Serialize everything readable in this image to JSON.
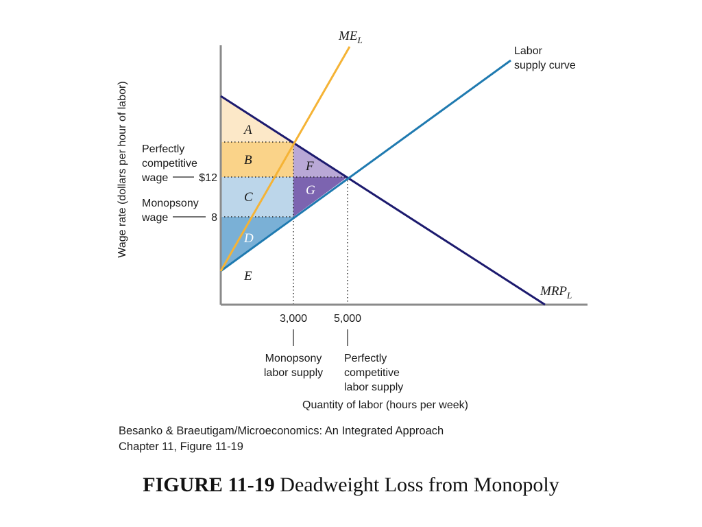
{
  "figure": {
    "y_axis_label": "Wage rate (dollars per hour of labor)",
    "x_axis_label": "Quantity of labor (hours per week)",
    "curves": {
      "me_l": {
        "main": "ME",
        "sub": "L",
        "color": "#f5b335"
      },
      "labor_supply": {
        "line1": "Labor",
        "line2": "supply curve",
        "color": "#1f7ab0"
      },
      "mrp_l": {
        "main": "MRP",
        "sub": "L",
        "color": "#1c1a6e"
      }
    },
    "wage_labels": {
      "competitive": {
        "line1": "Perfectly",
        "line2": "competitive",
        "line3": "wage",
        "value": "$12"
      },
      "monopsony": {
        "line1": "Monopsony",
        "line2": "wage",
        "value": "8"
      }
    },
    "quantity_labels": {
      "monopsony": {
        "value": "3,000",
        "line1": "Monopsony",
        "line2": "labor supply"
      },
      "competitive": {
        "value": "5,000",
        "line1": "Perfectly",
        "line2": "competitive",
        "line3": "labor supply"
      }
    },
    "areas": [
      {
        "letter": "A",
        "color": "#fce8c8"
      },
      {
        "letter": "B",
        "color": "#fad389"
      },
      {
        "letter": "C",
        "color": "#bcd6ea"
      },
      {
        "letter": "D",
        "color": "#7ab0d6"
      },
      {
        "letter": "E",
        "color": "#ffffff"
      },
      {
        "letter": "F",
        "color": "#b9a8d6"
      },
      {
        "letter": "G",
        "color": "#7c64b0"
      }
    ]
  },
  "credit": {
    "line1": "Besanko & Braeutigam/Microeconomics: An Integrated Approach",
    "line2": "Chapter 11, Figure 11-19"
  },
  "caption": {
    "label": "FIGURE 11-19",
    "title": "Deadweight Loss from Monopoly"
  }
}
